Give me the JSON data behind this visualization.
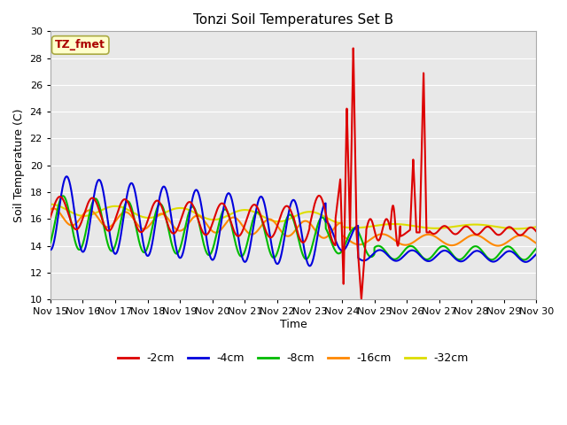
{
  "title": "Tonzi Soil Temperatures Set B",
  "xlabel": "Time",
  "ylabel": "Soil Temperature (C)",
  "ylim": [
    10,
    30
  ],
  "xlim": [
    0,
    15
  ],
  "plot_bg": "#e8e8e8",
  "fig_bg": "#ffffff",
  "grid_color": "#ffffff",
  "annotation_label": "TZ_fmet",
  "annotation_bg": "#ffffcc",
  "annotation_border": "#aaaa44",
  "annotation_text_color": "#aa0000",
  "series_colors": {
    "-2cm": "#dd0000",
    "-4cm": "#0000dd",
    "-8cm": "#00bb00",
    "-16cm": "#ff8800",
    "-32cm": "#dddd00"
  },
  "xtick_labels": [
    "Nov 15",
    "Nov 16",
    "Nov 17",
    "Nov 18",
    "Nov 19",
    "Nov 20",
    "Nov 21",
    "Nov 22",
    "Nov 23",
    "Nov 24",
    "Nov 25",
    "Nov 26",
    "Nov 27",
    "Nov 28",
    "Nov 29",
    "Nov 30"
  ],
  "legend_labels": [
    "-2cm",
    "-4cm",
    "-8cm",
    "-16cm",
    "-32cm"
  ]
}
